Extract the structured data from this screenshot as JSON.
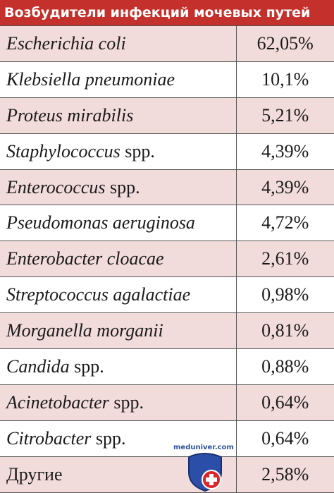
{
  "header": {
    "title": "Возбудители инфекций мочевых путей"
  },
  "table": {
    "rows": [
      {
        "name": "Escherichia coli",
        "share": "62,05%"
      },
      {
        "name": "Klebsiella pneumoniae",
        "share": "10,1%"
      },
      {
        "name": "Proteus mirabilis",
        "share": "5,21%"
      },
      {
        "name": "Staphylococcus",
        "qualifier": "spp.",
        "share": "4,39%"
      },
      {
        "name": "Enterococcus",
        "qualifier": "spp.",
        "share": "4,39%"
      },
      {
        "name": "Pseudomonas aeruginosa",
        "share": "4,72%"
      },
      {
        "name": "Enterobacter cloacae",
        "share": "2,61%"
      },
      {
        "name": "Streptococcus agalactiae",
        "share": "0,98%"
      },
      {
        "name": "Morganella morganii",
        "share": "0,81%"
      },
      {
        "name": "Candida",
        "qualifier": "spp.",
        "share": "0,88%"
      },
      {
        "name": "Acinetobacter",
        "qualifier": "spp.",
        "share": "0,64%"
      },
      {
        "name": "Citrobacter",
        "qualifier": "spp.",
        "share": "0,64%"
      },
      {
        "other": "Другие",
        "share": "2,58%"
      }
    ]
  },
  "watermark": "meduniver.com"
}
